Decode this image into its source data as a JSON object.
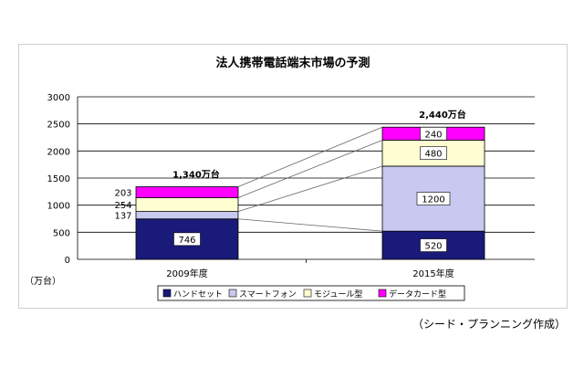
{
  "chart_data": {
    "type": "stacked-bar",
    "title": "法人携帯電話端末市場の予測",
    "unit_label": "（万台）",
    "categories": [
      "2009年度",
      "2015年度"
    ],
    "totals_labels": [
      "1,340万台",
      "2,440万台"
    ],
    "series": [
      {
        "name": "ハンドセット",
        "color": "#1a1a7a",
        "values": [
          746,
          520
        ]
      },
      {
        "name": "スマートフォン",
        "color": "#c8c8f0",
        "values": [
          137,
          1200
        ]
      },
      {
        "name": "モジュール型",
        "color": "#fefed2",
        "values": [
          254,
          480
        ]
      },
      {
        "name": "データカード型",
        "color": "#ff00ff",
        "values": [
          203,
          240
        ]
      }
    ],
    "value_labels": [
      [
        "746",
        "137",
        "254",
        "203"
      ],
      [
        "520",
        "1200",
        "480",
        "240"
      ]
    ],
    "y_ticks": [
      0,
      500,
      1000,
      1500,
      2000,
      2500,
      3000
    ],
    "ylim": [
      0,
      3000
    ],
    "grid": true,
    "legend_position": "bottom"
  },
  "credit": "（シード・プランニング作成）"
}
